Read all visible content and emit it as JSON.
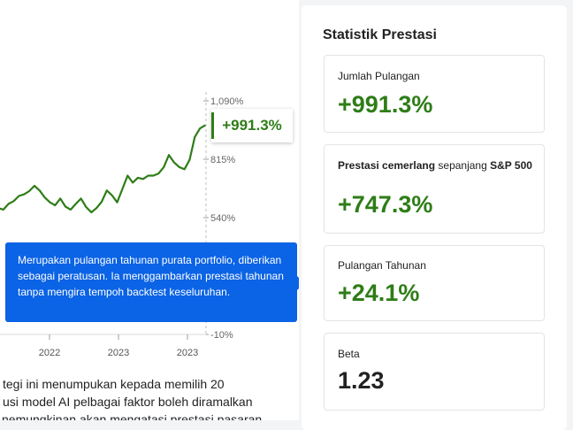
{
  "chart_data": {
    "type": "line",
    "title": "",
    "xlabel": "",
    "ylabel": "",
    "y_tick_labels": [
      "1,090%",
      "815%",
      "540%",
      "-10%"
    ],
    "x_tick_labels": [
      "2022",
      "2023",
      "2023"
    ],
    "ylim": [
      -10,
      1090
    ],
    "series": [
      {
        "values": [
          585,
          578,
          605,
          618,
          642,
          650,
          665,
          690,
          668,
          635,
          612,
          598,
          630,
          592,
          578,
          605,
          630,
          590,
          565,
          585,
          615,
          668,
          645,
          612,
          675,
          738,
          705,
          728,
          722,
          738,
          738,
          748,
          778,
          835,
          800,
          778,
          768,
          812,
          920,
          960,
          975
        ]
      }
    ],
    "last_value_label": "+991.3%"
  },
  "tooltip": {
    "text": "Merupakan pulangan tahunan purata portfolio, diberikan sebagai peratusan. Ia menggambarkan prestasi tahunan tanpa mengira tempoh backtest keseluruhan."
  },
  "description": {
    "lines": [
      "tegi ini menumpukan kepada memilih 20",
      "usi model AI pelbagai faktor boleh diramalkan",
      "nemungkinan akan mengatasi prestasi pasaran"
    ]
  },
  "panel": {
    "title": "Statistik Prestasi",
    "cards": {
      "total_return": {
        "label": "Jumlah Pulangan",
        "value": "+991.3%"
      },
      "outperformance": {
        "label_bold": "Prestasi cemerlang",
        "label_mid": " sepanjang ",
        "label_bold2": "S&P 500",
        "value": "+747.3%"
      },
      "annual_return": {
        "label": "Pulangan Tahunan",
        "value": "+24.1%"
      },
      "beta": {
        "label": "Beta",
        "value": "1.23"
      }
    },
    "colors": {
      "positive": "#2e7d17",
      "tooltip_bg": "#0b63e5"
    }
  }
}
